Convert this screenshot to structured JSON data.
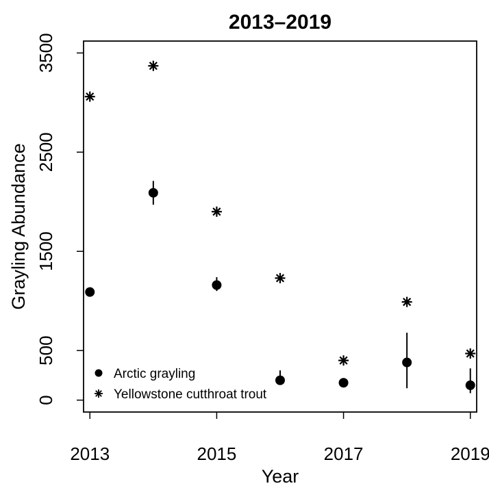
{
  "chart_data": {
    "type": "scatter",
    "title": "2013–2019",
    "xlabel": "Year",
    "ylabel": "Grayling Abundance",
    "xlim": [
      2012.9,
      2019.1
    ],
    "ylim": [
      -120,
      3620
    ],
    "xticks": [
      2013,
      2015,
      2017,
      2019
    ],
    "yticks": [
      0,
      500,
      1500,
      2500,
      3500
    ],
    "grid": false,
    "legend_position": "bottom-left",
    "series": [
      {
        "name": "Arctic grayling",
        "marker": "circle",
        "points": [
          {
            "x": 2013,
            "y": 1090,
            "lo": null,
            "hi": null
          },
          {
            "x": 2014,
            "y": 2090,
            "lo": 1970,
            "hi": 2210
          },
          {
            "x": 2015,
            "y": 1160,
            "lo": 1100,
            "hi": 1240
          },
          {
            "x": 2016,
            "y": 200,
            "lo": 170,
            "hi": 300
          },
          {
            "x": 2017,
            "y": 175,
            "lo": null,
            "hi": null
          },
          {
            "x": 2018,
            "y": 380,
            "lo": 120,
            "hi": 680
          },
          {
            "x": 2019,
            "y": 150,
            "lo": 70,
            "hi": 320
          }
        ]
      },
      {
        "name": "Yellowstone cutthroat trout",
        "marker": "asterisk",
        "points": [
          {
            "x": 2013,
            "y": 3060
          },
          {
            "x": 2014,
            "y": 3370
          },
          {
            "x": 2015,
            "y": 1900
          },
          {
            "x": 2016,
            "y": 1230
          },
          {
            "x": 2017,
            "y": 400
          },
          {
            "x": 2018,
            "y": 990
          },
          {
            "x": 2019,
            "y": 470
          }
        ]
      }
    ]
  }
}
